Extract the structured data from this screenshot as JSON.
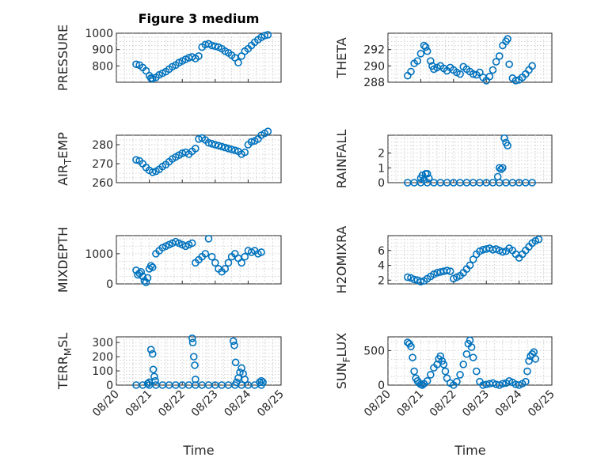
{
  "figure": {
    "title": "Figure 3 medium",
    "xlabel": "Time",
    "xtick_labels": [
      "08/20",
      "08/21",
      "08/22",
      "08/23",
      "08/24",
      "08/25"
    ],
    "marker_color": "#0072BD",
    "grid": true
  },
  "chart_data": [
    {
      "type": "scatter",
      "ylabel": "PRESSURE",
      "title": "Figure 3 medium",
      "xlim": [
        0,
        5
      ],
      "ylim": [
        700,
        1000
      ],
      "yticks": [
        800,
        900,
        1000
      ],
      "x": [
        0.6,
        0.7,
        0.8,
        0.9,
        1.0,
        1.05,
        1.1,
        1.2,
        1.3,
        1.4,
        1.5,
        1.6,
        1.7,
        1.8,
        1.9,
        2.0,
        2.1,
        2.2,
        2.3,
        2.4,
        2.5,
        2.6,
        2.7,
        2.8,
        2.9,
        3.0,
        3.1,
        3.2,
        3.3,
        3.4,
        3.5,
        3.6,
        3.7,
        3.8,
        3.9,
        4.0,
        4.1,
        4.2,
        4.3,
        4.4,
        4.5,
        4.6
      ],
      "y": [
        810,
        805,
        790,
        770,
        740,
        725,
        722,
        730,
        745,
        755,
        765,
        780,
        795,
        805,
        820,
        830,
        840,
        850,
        855,
        845,
        860,
        915,
        930,
        935,
        925,
        920,
        915,
        905,
        890,
        880,
        865,
        850,
        820,
        860,
        890,
        905,
        925,
        945,
        960,
        975,
        985,
        990
      ]
    },
    {
      "type": "scatter",
      "ylabel": "THETA",
      "xlim": [
        0,
        5
      ],
      "ylim": [
        288,
        294
      ],
      "yticks": [
        288,
        290,
        292
      ],
      "x": [
        0.6,
        0.7,
        0.8,
        0.9,
        1.0,
        1.1,
        1.15,
        1.2,
        1.3,
        1.35,
        1.4,
        1.5,
        1.6,
        1.7,
        1.8,
        1.9,
        2.0,
        2.1,
        2.2,
        2.3,
        2.4,
        2.5,
        2.6,
        2.7,
        2.8,
        2.9,
        3.0,
        3.1,
        3.2,
        3.3,
        3.4,
        3.5,
        3.6,
        3.65,
        3.7,
        3.8,
        3.9,
        4.0,
        4.1,
        4.2,
        4.3,
        4.4
      ],
      "y": [
        288.8,
        289.3,
        290.3,
        290.6,
        291.5,
        292.5,
        292.3,
        291.8,
        290.6,
        290.0,
        289.6,
        289.8,
        290.0,
        289.7,
        289.4,
        289.8,
        289.5,
        289.2,
        289.0,
        289.9,
        289.6,
        289.3,
        289.0,
        288.9,
        289.2,
        288.6,
        288.2,
        288.7,
        289.5,
        290.5,
        291.2,
        292.5,
        293.0,
        293.3,
        290.2,
        288.5,
        288.2,
        288.3,
        288.6,
        289.0,
        289.5,
        290.0
      ]
    },
    {
      "type": "scatter",
      "ylabel": "AIR_TEMP",
      "xlim": [
        0,
        5
      ],
      "ylim": [
        260,
        285
      ],
      "yticks": [
        260,
        270,
        280
      ],
      "x": [
        0.6,
        0.7,
        0.8,
        0.9,
        1.0,
        1.1,
        1.2,
        1.3,
        1.4,
        1.5,
        1.6,
        1.7,
        1.8,
        1.9,
        2.0,
        2.1,
        2.2,
        2.3,
        2.4,
        2.5,
        2.6,
        2.7,
        2.8,
        2.9,
        3.0,
        3.1,
        3.2,
        3.3,
        3.4,
        3.5,
        3.6,
        3.7,
        3.8,
        3.9,
        4.0,
        4.1,
        4.2,
        4.3,
        4.4,
        4.5,
        4.6
      ],
      "y": [
        272,
        271.5,
        270,
        268,
        266.5,
        265.5,
        266,
        267,
        268.5,
        269.5,
        271,
        272.5,
        273.5,
        274.5,
        275.5,
        276,
        275,
        276.5,
        278,
        283,
        283.5,
        282.5,
        281,
        280.5,
        280,
        279.5,
        279,
        278.5,
        278,
        277.5,
        277,
        276.5,
        275,
        276,
        280,
        281.5,
        282,
        283,
        285,
        286,
        287
      ]
    },
    {
      "type": "scatter",
      "ylabel": "RAINFALL",
      "xlim": [
        0,
        5
      ],
      "ylim": [
        0,
        3.2
      ],
      "yticks": [
        0,
        1,
        2
      ],
      "x": [
        0.6,
        0.8,
        1.0,
        1.2,
        1.4,
        1.6,
        1.8,
        2.0,
        2.2,
        2.4,
        2.6,
        2.8,
        3.0,
        3.2,
        3.4,
        3.6,
        3.8,
        4.0,
        4.2,
        4.4,
        1.0,
        1.05,
        1.1,
        1.15,
        1.2,
        1.25,
        3.35,
        3.4,
        3.45,
        3.5,
        3.55,
        3.6,
        3.65
      ],
      "y": [
        0,
        0,
        0,
        0,
        0,
        0,
        0,
        0,
        0,
        0,
        0,
        0,
        0,
        0,
        0,
        0,
        0,
        0,
        0,
        0,
        0.3,
        0.5,
        0.2,
        0.6,
        0.6,
        0.3,
        0.4,
        1.0,
        0.9,
        1.0,
        3.0,
        2.7,
        2.5
      ]
    },
    {
      "type": "scatter",
      "ylabel": "MIXDEPTH",
      "xlim": [
        0,
        5
      ],
      "ylim": [
        0,
        1600
      ],
      "yticks": [
        0,
        1000
      ],
      "x": [
        0.6,
        0.65,
        0.7,
        0.75,
        0.8,
        0.85,
        0.9,
        0.95,
        1.0,
        1.05,
        1.1,
        1.2,
        1.3,
        1.4,
        1.5,
        1.6,
        1.7,
        1.8,
        1.9,
        2.0,
        2.1,
        2.2,
        2.3,
        2.4,
        2.5,
        2.6,
        2.7,
        2.8,
        2.9,
        3.0,
        3.1,
        3.2,
        3.3,
        3.4,
        3.5,
        3.6,
        3.7,
        3.8,
        3.9,
        4.0,
        4.1,
        4.2,
        4.3,
        4.4
      ],
      "y": [
        450,
        300,
        350,
        400,
        250,
        100,
        50,
        200,
        500,
        600,
        550,
        1000,
        1100,
        1200,
        1250,
        1300,
        1350,
        1400,
        1350,
        1300,
        1250,
        1300,
        1350,
        700,
        800,
        900,
        1000,
        1500,
        900,
        700,
        500,
        400,
        500,
        700,
        900,
        1000,
        850,
        700,
        900,
        1100,
        1050,
        1100,
        1000,
        1050
      ]
    },
    {
      "type": "scatter",
      "ylabel": "H2OMIXRA",
      "xlim": [
        0,
        5
      ],
      "ylim": [
        1.5,
        8
      ],
      "yticks": [
        2,
        4,
        6
      ],
      "x": [
        0.6,
        0.7,
        0.8,
        0.9,
        1.0,
        1.1,
        1.2,
        1.3,
        1.4,
        1.5,
        1.6,
        1.7,
        1.8,
        1.9,
        2.0,
        2.1,
        2.2,
        2.3,
        2.4,
        2.5,
        2.6,
        2.7,
        2.8,
        2.9,
        3.0,
        3.1,
        3.2,
        3.3,
        3.4,
        3.5,
        3.6,
        3.7,
        3.8,
        3.9,
        4.0,
        4.1,
        4.2,
        4.3,
        4.4,
        4.5,
        4.6
      ],
      "y": [
        2.4,
        2.3,
        2.1,
        2.0,
        1.8,
        1.9,
        2.2,
        2.5,
        2.8,
        3.0,
        3.1,
        3.2,
        3.3,
        3.2,
        2.2,
        2.4,
        2.6,
        3.0,
        3.5,
        4.0,
        4.8,
        5.5,
        5.9,
        6.1,
        6.2,
        6.3,
        6.1,
        6.2,
        6.0,
        5.8,
        5.9,
        6.3,
        6.0,
        5.5,
        5.0,
        5.5,
        6.0,
        6.5,
        7.0,
        7.3,
        7.5
      ]
    },
    {
      "type": "scatter",
      "ylabel": "TERR_MSL",
      "xlim": [
        0,
        5
      ],
      "ylim": [
        0,
        340
      ],
      "yticks": [
        0,
        100,
        200,
        300
      ],
      "x": [
        0.6,
        0.8,
        1.0,
        1.2,
        1.4,
        1.6,
        1.8,
        2.0,
        2.2,
        2.4,
        2.6,
        2.8,
        3.0,
        3.2,
        3.4,
        3.6,
        3.8,
        4.0,
        4.2,
        4.4,
        1.05,
        1.1,
        1.12,
        1.15,
        1.18,
        1.0,
        0.95,
        2.3,
        2.32,
        2.35,
        2.38,
        2.4,
        3.55,
        3.58,
        3.62,
        3.65,
        3.7,
        3.75,
        3.8,
        3.85,
        3.9,
        4.35,
        4.4,
        4.45
      ],
      "y": [
        0,
        0,
        0,
        0,
        0,
        0,
        0,
        0,
        0,
        0,
        0,
        0,
        0,
        0,
        0,
        0,
        0,
        0,
        0,
        0,
        250,
        220,
        110,
        60,
        30,
        20,
        10,
        330,
        300,
        200,
        140,
        40,
        310,
        280,
        160,
        20,
        50,
        90,
        120,
        80,
        40,
        20,
        30,
        20
      ]
    },
    {
      "type": "scatter",
      "ylabel": "SUN_FLUX",
      "xlim": [
        0,
        5
      ],
      "ylim": [
        0,
        700
      ],
      "yticks": [
        0,
        500
      ],
      "x": [
        0.6,
        0.65,
        0.7,
        0.75,
        0.8,
        0.85,
        0.9,
        0.95,
        1.0,
        1.05,
        1.1,
        1.2,
        1.3,
        1.4,
        1.5,
        1.55,
        1.6,
        1.65,
        1.7,
        1.75,
        1.8,
        1.9,
        2.0,
        2.1,
        2.2,
        2.3,
        2.4,
        2.45,
        2.5,
        2.55,
        2.6,
        2.7,
        2.8,
        2.9,
        3.0,
        3.1,
        3.2,
        3.3,
        3.4,
        3.5,
        3.6,
        3.7,
        3.8,
        3.9,
        4.0,
        4.1,
        4.2,
        4.25,
        4.3,
        4.35,
        4.4,
        4.45,
        4.5
      ],
      "y": [
        620,
        600,
        560,
        400,
        200,
        100,
        60,
        30,
        10,
        0,
        20,
        60,
        150,
        250,
        300,
        380,
        420,
        350,
        300,
        200,
        100,
        30,
        0,
        50,
        150,
        300,
        450,
        600,
        650,
        550,
        400,
        200,
        50,
        0,
        10,
        20,
        30,
        10,
        0,
        20,
        30,
        60,
        40,
        10,
        0,
        20,
        50,
        200,
        350,
        420,
        450,
        480,
        380
      ]
    }
  ]
}
